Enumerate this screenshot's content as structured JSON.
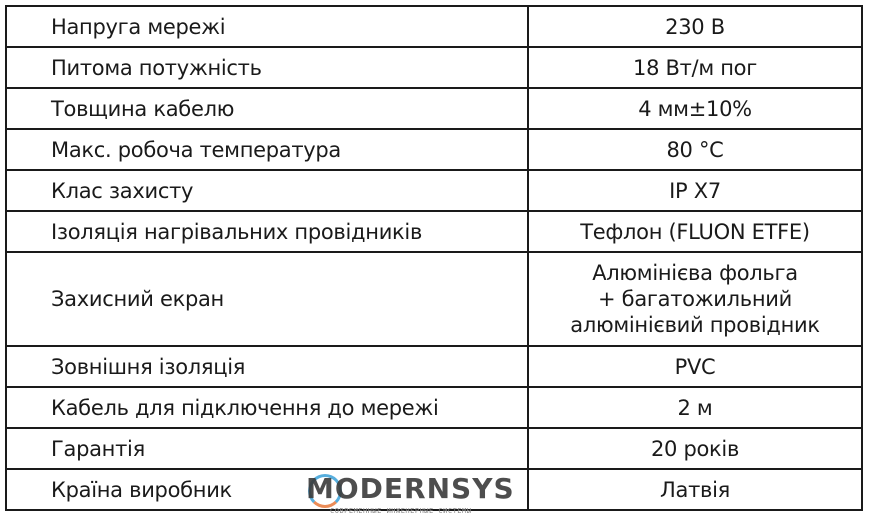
{
  "rows": [
    {
      "label": "Напруга мережі",
      "value": "230 В"
    },
    {
      "label": "Питома потужність",
      "value": "18 Вт/м пог"
    },
    {
      "label": "Товщина кабелю",
      "value": "4 мм±10%"
    },
    {
      "label": "Макс. робоча температура",
      "value": "80 °C"
    },
    {
      "label": "Клас захисту",
      "value": "IP X7"
    },
    {
      "label": "Ізоляція нагрівальних провідників",
      "value": "Тефлон (FLUON ETFE)"
    },
    {
      "label": "Захисний екран",
      "value_lines": [
        "Алюмінієва фольга",
        "+ багатожильний",
        "алюмінієвий провідник"
      ]
    },
    {
      "label": "Зовнішня ізоляція",
      "value": "PVC"
    },
    {
      "label": "Кабель для підключення до мережі",
      "value": "2 м"
    },
    {
      "label": "Гарантія",
      "value": "20 років"
    },
    {
      "label": "Країна виробник",
      "value": "Латвія"
    }
  ],
  "watermark": {
    "brand": "MODERNSYS",
    "tagline": "СОВРЕМЕННЫЕ ИНЖЕНЕРНЫЕ СИСТЕМЫ"
  }
}
